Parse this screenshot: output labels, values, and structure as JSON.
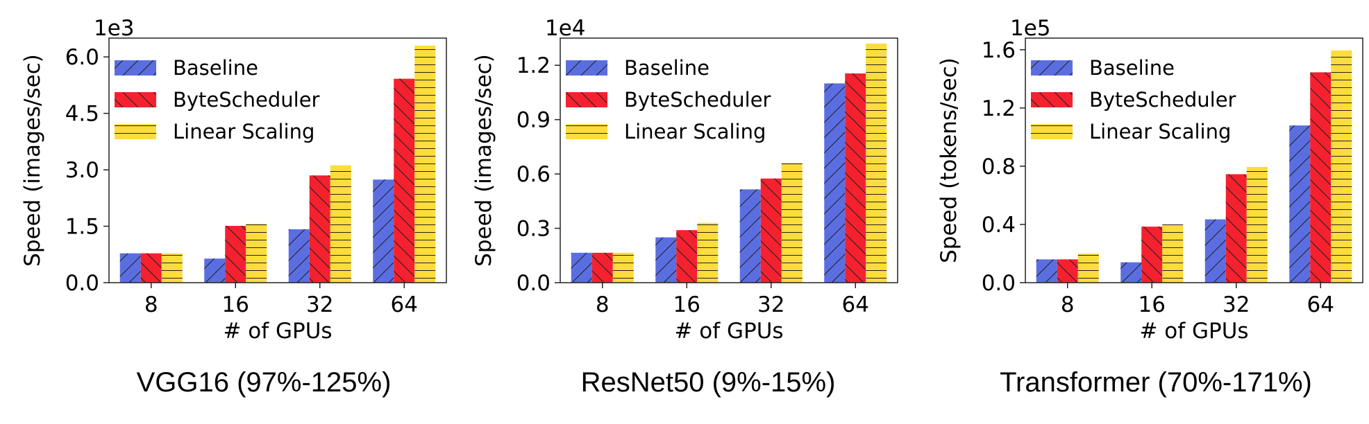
{
  "chart_data": [
    {
      "type": "bar",
      "categories": [
        "8",
        "16",
        "32",
        "64"
      ],
      "series": [
        {
          "name": "Baseline",
          "values": [
            780,
            640,
            1420,
            2740
          ]
        },
        {
          "name": "ByteScheduler",
          "values": [
            780,
            1510,
            2850,
            5420
          ]
        },
        {
          "name": "Linear Scaling",
          "values": [
            780,
            1560,
            3120,
            6300
          ]
        }
      ],
      "ylim": [
        0,
        6500
      ],
      "yticks": [
        0,
        1500,
        3000,
        4500,
        6000
      ],
      "ytick_labels": [
        "0.0",
        "1.5",
        "3.0",
        "4.5",
        "6.0"
      ],
      "scale_label": "1e3",
      "xlabel": "# of GPUs",
      "ylabel": "Speed (images/sec)",
      "caption": "VGG16 (97%-125%)",
      "legend": "upper-left"
    },
    {
      "type": "bar",
      "categories": [
        "8",
        "16",
        "32",
        "64"
      ],
      "series": [
        {
          "name": "Baseline",
          "values": [
            1650,
            2500,
            5150,
            11000
          ]
        },
        {
          "name": "ByteScheduler",
          "values": [
            1650,
            2900,
            5750,
            11550
          ]
        },
        {
          "name": "Linear Scaling",
          "values": [
            1650,
            3300,
            6600,
            13200
          ]
        }
      ],
      "ylim": [
        0,
        13500
      ],
      "yticks": [
        0,
        3000,
        6000,
        9000,
        12000
      ],
      "ytick_labels": [
        "0.0",
        "0.3",
        "0.6",
        "0.9",
        "1.2"
      ],
      "scale_label": "1e4",
      "xlabel": "# of GPUs",
      "ylabel": "Speed (images/sec)",
      "caption": "ResNet50 (9%-15%)",
      "legend": "upper-left"
    },
    {
      "type": "bar",
      "categories": [
        "8",
        "16",
        "32",
        "64"
      ],
      "series": [
        {
          "name": "Baseline",
          "values": [
            16000,
            14000,
            43500,
            108000
          ]
        },
        {
          "name": "ByteScheduler",
          "values": [
            16000,
            38500,
            74500,
            144500
          ]
        },
        {
          "name": "Linear Scaling",
          "values": [
            20000,
            40000,
            79500,
            159500
          ]
        }
      ],
      "ylim": [
        0,
        168000
      ],
      "yticks": [
        0,
        40000,
        80000,
        120000,
        160000
      ],
      "ytick_labels": [
        "0.0",
        "0.4",
        "0.8",
        "1.2",
        "1.6"
      ],
      "scale_label": "1e5",
      "xlabel": "# of GPUs",
      "ylabel": "Speed (tokens/sec)",
      "caption": "Transformer (70%-171%)",
      "legend": "upper-left"
    }
  ],
  "colors": {
    "Baseline": "#5b6ee1",
    "ByteScheduler": "#f5212f",
    "Linear Scaling": "#fddc3e"
  }
}
